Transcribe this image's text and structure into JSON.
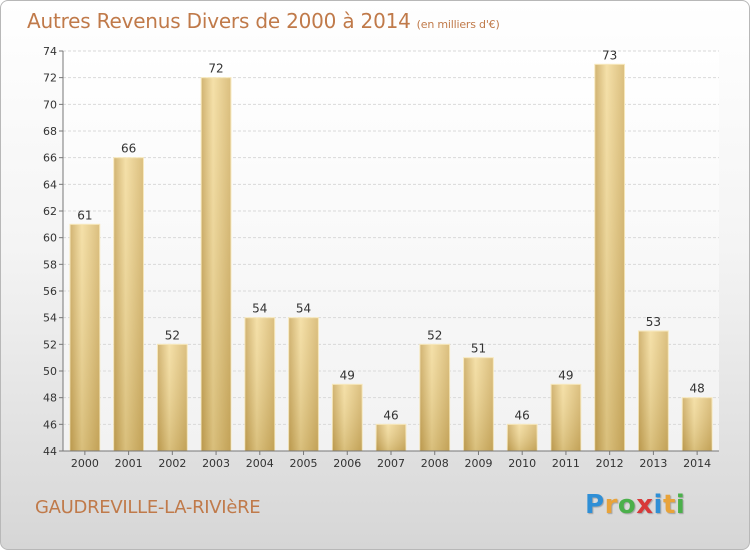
{
  "title": "Autres Revenus Divers de 2000 à 2014",
  "subtitle": "(en milliers d'€)",
  "commune": "GAUDREVILLE-LA-RIVIèRE",
  "logo": {
    "letters": [
      "P",
      "r",
      "o",
      "x",
      "i",
      "t",
      "i"
    ],
    "colors": [
      "#2f8fd6",
      "#e8a33a",
      "#4bb04b",
      "#d83a3a",
      "#2f8fd6",
      "#e8a33a",
      "#4bb04b"
    ]
  },
  "chart_data": {
    "type": "bar",
    "categories": [
      "2000",
      "2001",
      "2002",
      "2003",
      "2004",
      "2005",
      "2006",
      "2007",
      "2008",
      "2009",
      "2010",
      "2011",
      "2012",
      "2013",
      "2014"
    ],
    "values": [
      61,
      66,
      52,
      72,
      54,
      54,
      49,
      46,
      52,
      51,
      46,
      49,
      73,
      53,
      48
    ],
    "title": "Autres Revenus Divers de 2000 à 2014",
    "xlabel": "",
    "ylabel": "",
    "ylim": [
      44,
      74
    ],
    "yticks": [
      44,
      46,
      48,
      50,
      52,
      54,
      56,
      58,
      60,
      62,
      64,
      66,
      68,
      70,
      72,
      74
    ],
    "grid": true,
    "bar_color": "#e7c77e"
  }
}
